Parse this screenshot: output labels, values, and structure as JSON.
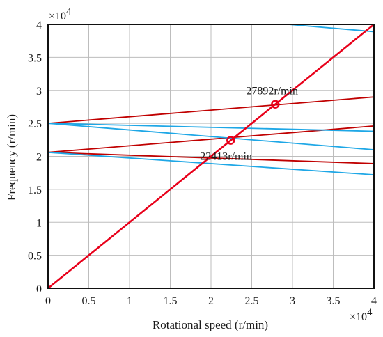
{
  "chart_data": {
    "type": "line",
    "xlabel": "Rotational speed (r/min)",
    "ylabel": "Frequency (r/min)",
    "x_multiplier_label": "×10",
    "x_multiplier_exp": "4",
    "y_multiplier_label": "×10",
    "y_multiplier_exp": "4",
    "xlim": [
      0,
      4
    ],
    "ylim": [
      0,
      4
    ],
    "x_ticks": [
      "0",
      "0.5",
      "1",
      "1.5",
      "2",
      "2.5",
      "3",
      "3.5",
      "4"
    ],
    "y_ticks": [
      "0",
      "0.5",
      "1",
      "1.5",
      "2",
      "2.5",
      "3",
      "3.5",
      "4"
    ],
    "grid": true,
    "colors": {
      "red": "#c00000",
      "bright_red": "#e8001a",
      "blue": "#1ea7e6",
      "grid": "#bdbdbd"
    },
    "series": [
      {
        "color": "red",
        "x": [
          0,
          4
        ],
        "y": [
          2.5,
          2.9
        ]
      },
      {
        "color": "red",
        "x": [
          0,
          4
        ],
        "y": [
          2.06,
          2.46
        ]
      },
      {
        "color": "red",
        "x": [
          0,
          4
        ],
        "y": [
          2.06,
          1.89
        ]
      },
      {
        "color": "blue",
        "x": [
          0,
          4
        ],
        "y": [
          2.5,
          2.1
        ]
      },
      {
        "color": "blue",
        "x": [
          0,
          4
        ],
        "y": [
          2.5,
          2.38
        ]
      },
      {
        "color": "blue",
        "x": [
          0,
          4
        ],
        "y": [
          2.06,
          1.72
        ]
      },
      {
        "color": "blue",
        "x": [
          2.95,
          4
        ],
        "y": [
          4.0,
          3.89
        ]
      },
      {
        "color": "bright_red",
        "x": [
          0,
          4
        ],
        "y": [
          0,
          4
        ]
      }
    ],
    "markers": [
      {
        "x": 2.2413,
        "y": 2.2413,
        "label": "22413r/min",
        "label_pos": "below-left"
      },
      {
        "x": 2.7892,
        "y": 2.7892,
        "label": "27892r/min",
        "label_pos": "above-left"
      }
    ]
  }
}
